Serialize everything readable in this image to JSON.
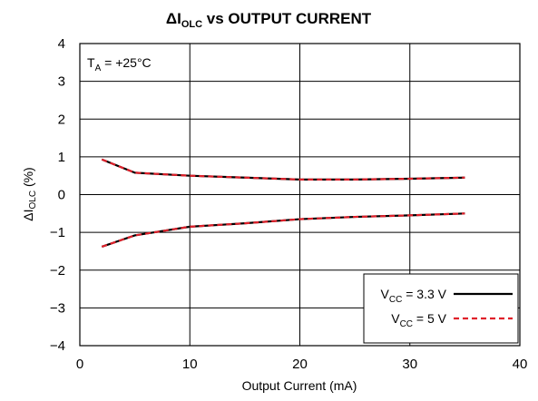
{
  "chart_data": {
    "type": "line",
    "title": {
      "prefix": "ΔI",
      "subscript": "OLC",
      "suffix": " vs OUTPUT CURRENT"
    },
    "xlabel": "Output Current (mA)",
    "ylabel": {
      "prefix": "ΔI",
      "subscript": "OLC",
      "suffix": " (%)"
    },
    "annotation": {
      "prefix": "T",
      "subscript": "A",
      "suffix": " = +25°C"
    },
    "xlim": [
      0,
      40
    ],
    "ylim": [
      -4,
      4
    ],
    "x_ticks": [
      0,
      10,
      20,
      30,
      40
    ],
    "y_ticks": [
      4,
      3,
      2,
      1,
      0,
      -1,
      -2,
      -3,
      -4
    ],
    "x_tick_labels": [
      "0",
      "10",
      "20",
      "30",
      "40"
    ],
    "y_tick_labels": [
      "4",
      "3",
      "2",
      "1",
      "0",
      "−1",
      "−2",
      "−3",
      "−4"
    ],
    "grid": true,
    "legend_position": "bottom-right",
    "series": [
      {
        "name": "VCC = 3.3 V",
        "legend": {
          "prefix": "V",
          "subscript": "CC",
          "suffix": " = 3.3 V"
        },
        "color": "#000000",
        "dash": "solid",
        "branches": [
          {
            "x": [
              2,
              5,
              10,
              15,
              20,
              25,
              30,
              35
            ],
            "y": [
              0.93,
              0.58,
              0.5,
              0.45,
              0.4,
              0.4,
              0.42,
              0.45
            ]
          },
          {
            "x": [
              2,
              5,
              10,
              15,
              20,
              25,
              30,
              35
            ],
            "y": [
              -1.38,
              -1.08,
              -0.85,
              -0.76,
              -0.65,
              -0.59,
              -0.55,
              -0.5
            ]
          }
        ]
      },
      {
        "name": "VCC = 5 V",
        "legend": {
          "prefix": "V",
          "subscript": "CC",
          "suffix": " = 5 V"
        },
        "color": "#e0202a",
        "dash": "dashed",
        "branches": [
          {
            "x": [
              2,
              5,
              10,
              15,
              20,
              25,
              30,
              35
            ],
            "y": [
              0.93,
              0.58,
              0.5,
              0.45,
              0.4,
              0.4,
              0.42,
              0.45
            ]
          },
          {
            "x": [
              2,
              5,
              10,
              15,
              20,
              25,
              30,
              35
            ],
            "y": [
              -1.38,
              -1.08,
              -0.85,
              -0.76,
              -0.65,
              -0.59,
              -0.55,
              -0.5
            ]
          }
        ]
      }
    ]
  }
}
